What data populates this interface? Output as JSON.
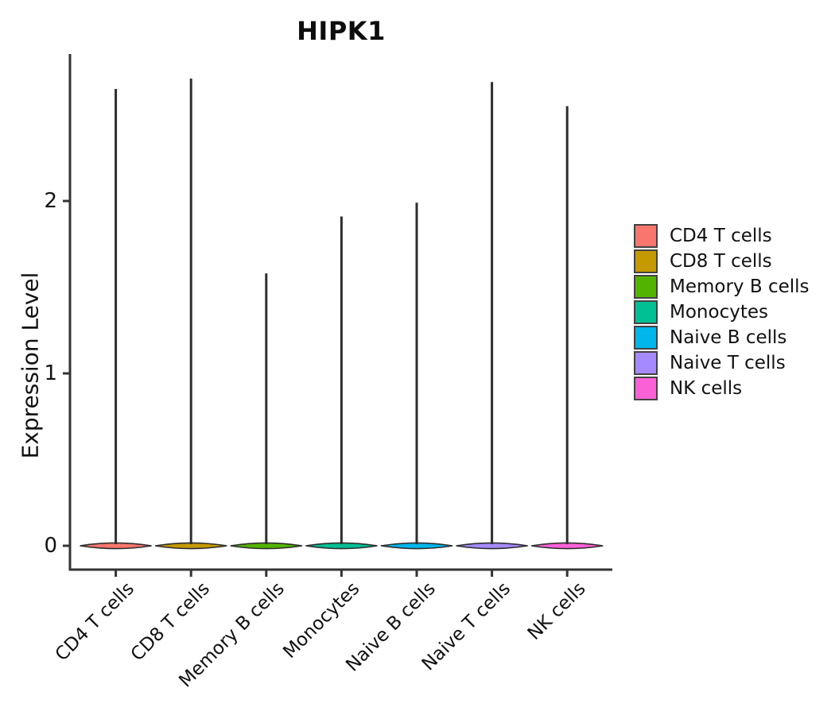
{
  "title": "HIPK1",
  "y_axis": {
    "label": "Expression Level",
    "ticks": [
      "0",
      "1",
      "2"
    ],
    "tick_values": [
      0,
      1,
      2
    ]
  },
  "legend": {
    "position": "right",
    "swatch_border_color": "#424242"
  },
  "style": {
    "violin_outline_color": "#2e2e2e",
    "axis_color": "#333333",
    "text_color": "#111111"
  },
  "chart_data": {
    "type": "violin",
    "title": "HIPK1",
    "xlabel": "",
    "ylabel": "Expression Level",
    "ylim": [
      -0.14,
      2.85
    ],
    "grid": false,
    "legend_position": "right",
    "categories": [
      "CD4 T cells",
      "CD8 T cells",
      "Memory B cells",
      "Monocytes",
      "Naive B cells",
      "Naive T cells",
      "NK cells"
    ],
    "series": [
      {
        "name": "CD4 T cells",
        "color": "#F8766D",
        "max_expression": 2.65,
        "density_peak_at": 0
      },
      {
        "name": "CD8 T cells",
        "color": "#C49A00",
        "max_expression": 2.71,
        "density_peak_at": 0
      },
      {
        "name": "Memory B cells",
        "color": "#53B400",
        "max_expression": 1.58,
        "density_peak_at": 0
      },
      {
        "name": "Monocytes",
        "color": "#00C094",
        "max_expression": 1.91,
        "density_peak_at": 0
      },
      {
        "name": "Naive B cells",
        "color": "#00B6EB",
        "max_expression": 1.99,
        "density_peak_at": 0
      },
      {
        "name": "Naive T cells",
        "color": "#A58AFF",
        "max_expression": 2.69,
        "density_peak_at": 0
      },
      {
        "name": "NK cells",
        "color": "#FB61D7",
        "max_expression": 2.55,
        "density_peak_at": 0
      }
    ]
  }
}
